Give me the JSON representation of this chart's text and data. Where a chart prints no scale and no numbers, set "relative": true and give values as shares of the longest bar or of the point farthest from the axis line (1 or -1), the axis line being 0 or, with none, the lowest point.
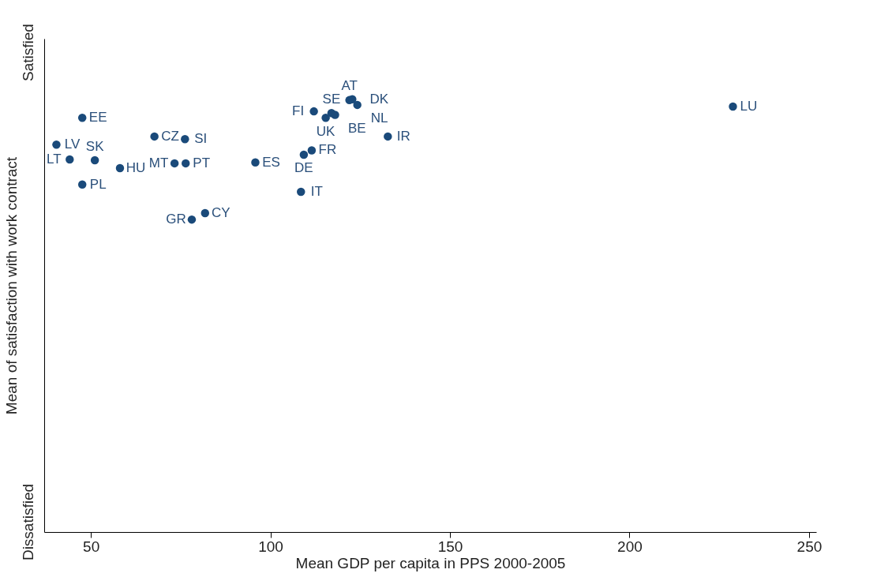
{
  "chart_data": {
    "type": "scatter",
    "xlabel": "Mean GDP per capita in PPS 2000-2005",
    "ylabel": "Mean of satisfaction with work contract",
    "xlim": [
      37,
      252
    ],
    "xticks": [
      50,
      100,
      150,
      200,
      250
    ],
    "relative": true,
    "grid": false,
    "marker": "circle",
    "series": [
      {
        "color": "#1a4a7a",
        "x": [
          47.6,
          40.4,
          67.7,
          76.2,
          44.1,
          51.1,
          58.1,
          73.3,
          76.4,
          95.8,
          47.6,
          81.8,
          78.1,
          108.5,
          109.3,
          111.5,
          132.7,
          228.8,
          112.1,
          117.0,
          115.4,
          118.0,
          122.0,
          122.8,
          124.2
        ],
        "values": [
          0.957,
          0.895,
          0.914,
          0.908,
          0.861,
          0.859,
          0.841,
          0.852,
          0.852,
          0.854,
          0.803,
          0.737,
          0.722,
          0.786,
          0.872,
          0.882,
          0.914,
          0.983,
          0.972,
          0.968,
          0.957,
          0.964,
          0.998,
          1,
          0.987
        ]
      }
    ],
    "annotations": [
      "Satisfied",
      "Dissatisfied",
      {
        "text": "EE",
        "x": 47.6,
        "y": 0.957
      },
      {
        "text": "LV",
        "x": 40.4,
        "y": 0.895
      },
      {
        "text": "CZ",
        "x": 67.7,
        "y": 0.914
      },
      {
        "text": "SI",
        "x": 76.2,
        "y": 0.908
      },
      {
        "text": "LT",
        "x": 44.1,
        "y": 0.861
      },
      {
        "text": "SK",
        "x": 51.1,
        "y": 0.859
      },
      {
        "text": "HU",
        "x": 58.1,
        "y": 0.841
      },
      {
        "text": "MT",
        "x": 73.3,
        "y": 0.852
      },
      {
        "text": "PT",
        "x": 76.4,
        "y": 0.852
      },
      {
        "text": "ES",
        "x": 95.8,
        "y": 0.854
      },
      {
        "text": "PL",
        "x": 47.6,
        "y": 0.803
      },
      {
        "text": "CY",
        "x": 81.8,
        "y": 0.737
      },
      {
        "text": "GR",
        "x": 78.1,
        "y": 0.722
      },
      {
        "text": "IT",
        "x": 108.5,
        "y": 0.786
      },
      {
        "text": "DE",
        "x": 109.3,
        "y": 0.872
      },
      {
        "text": "FR",
        "x": 111.5,
        "y": 0.882
      },
      {
        "text": "IR",
        "x": 132.7,
        "y": 0.914
      },
      {
        "text": "LU",
        "x": 228.8,
        "y": 0.983
      },
      {
        "text": "FI",
        "x": 112.1,
        "y": 0.972
      },
      {
        "text": "SE",
        "x": 117.0,
        "y": 0.968
      },
      {
        "text": "UK",
        "x": 115.4,
        "y": 0.957
      },
      {
        "text": "BE",
        "x": 118.0,
        "y": 0.964
      },
      {
        "text": "AT",
        "x": 122.0,
        "y": 0.998
      },
      {
        "text": "DK",
        "x": 122.8,
        "y": 1
      },
      {
        "text": "NL",
        "x": 124.2,
        "y": 0.987
      }
    ]
  }
}
